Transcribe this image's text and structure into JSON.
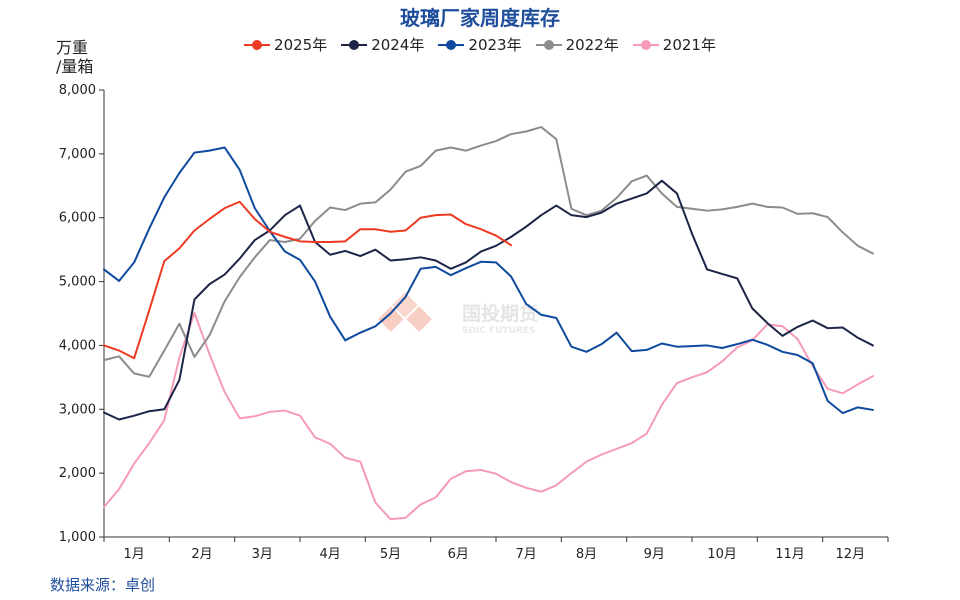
{
  "chart_data": {
    "type": "line",
    "title": "玻璃厂家周度库存",
    "ylabel": "万重/量箱",
    "ylabel_lines": [
      "万重",
      "/量箱"
    ],
    "ylim": [
      1000,
      8000
    ],
    "yticks": [
      1000,
      2000,
      3000,
      4000,
      5000,
      6000,
      7000,
      8000
    ],
    "ytick_labels": [
      "1,000",
      "2,000",
      "3,000",
      "4,000",
      "5,000",
      "6,000",
      "7,000",
      "8,000"
    ],
    "x_range_weeks": [
      0,
      52
    ],
    "xtick_positions": [
      2,
      6.5,
      10.5,
      15,
      19,
      23.5,
      28,
      32,
      36.5,
      41,
      45.5,
      49.5
    ],
    "xtick_labels": [
      "1月",
      "2月",
      "3月",
      "4月",
      "5月",
      "6月",
      "7月",
      "8月",
      "9月",
      "10月",
      "11月",
      "12月"
    ],
    "series": [
      {
        "name": "2025年",
        "color": "#ee3a23",
        "values": [
          4000,
          3920,
          3800,
          4550,
          5320,
          5520,
          5800,
          5980,
          6150,
          6250,
          5980,
          5780,
          5700,
          5630,
          5620,
          5620,
          5630,
          5820,
          5820,
          5780,
          5800,
          6000,
          6040,
          6050,
          5900,
          5820,
          5720,
          5570
        ]
      },
      {
        "name": "2024年",
        "color": "#1c2547",
        "values": [
          2950,
          2840,
          2900,
          2970,
          3000,
          3460,
          4720,
          4960,
          5110,
          5360,
          5650,
          5800,
          6040,
          6190,
          5620,
          5420,
          5480,
          5400,
          5500,
          5330,
          5350,
          5380,
          5330,
          5200,
          5300,
          5470,
          5560,
          5700,
          5860,
          6040,
          6190,
          6040,
          6010,
          6080,
          6220,
          6300,
          6380,
          6580,
          6380,
          5750,
          5190,
          5120,
          5050,
          4580,
          4350,
          4150,
          4290,
          4390,
          4270,
          4280,
          4120,
          4000
        ]
      },
      {
        "name": "2023年",
        "color": "#0f4a9e",
        "values": [
          5190,
          5010,
          5300,
          5830,
          6320,
          6700,
          7020,
          7050,
          7100,
          6750,
          6150,
          5790,
          5470,
          5340,
          5000,
          4450,
          4080,
          4200,
          4300,
          4500,
          4760,
          5200,
          5230,
          5100,
          5210,
          5310,
          5300,
          5080,
          4650,
          4480,
          4430,
          3980,
          3900,
          4020,
          4200,
          3910,
          3930,
          4030,
          3980,
          3990,
          4000,
          3960,
          4020,
          4090,
          4010,
          3900,
          3850,
          3720,
          3130,
          2940,
          3030,
          2990
        ]
      },
      {
        "name": "2022年",
        "color": "#8c8c8c",
        "values": [
          3770,
          3830,
          3560,
          3510,
          3920,
          4340,
          3820,
          4160,
          4690,
          5070,
          5380,
          5650,
          5620,
          5670,
          5950,
          6160,
          6120,
          6220,
          6240,
          6440,
          6720,
          6810,
          7050,
          7100,
          7050,
          7130,
          7200,
          7310,
          7350,
          7420,
          7230,
          6140,
          6040,
          6110,
          6310,
          6570,
          6660,
          6380,
          6170,
          6140,
          6110,
          6130,
          6170,
          6220,
          6170,
          6160,
          6060,
          6070,
          6010,
          5770,
          5560,
          5440
        ]
      },
      {
        "name": "2021年",
        "color": "#f59bb7",
        "values": [
          1470,
          1750,
          2150,
          2470,
          2830,
          3810,
          4510,
          3860,
          3270,
          2860,
          2890,
          2960,
          2980,
          2900,
          2560,
          2460,
          2240,
          2180,
          1540,
          1280,
          1300,
          1510,
          1620,
          1910,
          2030,
          2050,
          1990,
          1860,
          1770,
          1710,
          1810,
          2000,
          2180,
          2290,
          2380,
          2470,
          2620,
          3070,
          3410,
          3500,
          3580,
          3750,
          3970,
          4080,
          4330,
          4300,
          4100,
          3680,
          3320,
          3250,
          3390,
          3520
        ]
      }
    ]
  },
  "footer": {
    "source": "数据来源：卓创"
  },
  "watermark": {
    "cn": "国投期货",
    "en": "SDIC FUTURES"
  }
}
